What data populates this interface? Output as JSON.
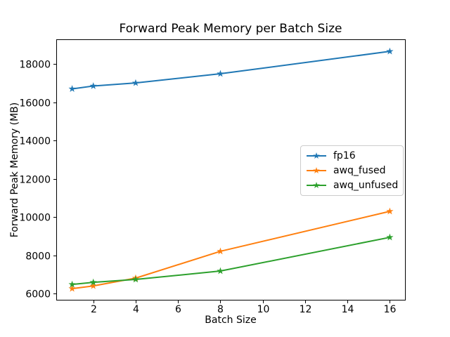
{
  "figure": {
    "background": "#ffffff",
    "text_color": "#000000",
    "spine_color": "#000000",
    "legend_border_color": "#cccccc"
  },
  "chart_data": {
    "type": "line",
    "title": "Forward Peak Memory per Batch Size",
    "xlabel": "Batch Size",
    "ylabel": "Forward Peak Memory (MB)",
    "x": [
      1,
      2,
      4,
      8,
      16
    ],
    "series": [
      {
        "name": "fp16",
        "color": "#1f77b4",
        "marker": "star",
        "values": [
          16700,
          16850,
          17010,
          17490,
          18660
        ]
      },
      {
        "name": "awq_fused",
        "color": "#ff7f0e",
        "marker": "star",
        "values": [
          6260,
          6400,
          6810,
          8210,
          10300
        ]
      },
      {
        "name": "awq_unfused",
        "color": "#2ca02c",
        "marker": "star",
        "values": [
          6480,
          6590,
          6740,
          7180,
          8940
        ]
      }
    ],
    "x_ticks": [
      2,
      4,
      6,
      8,
      10,
      12,
      14,
      16
    ],
    "y_ticks": [
      6000,
      8000,
      10000,
      12000,
      14000,
      16000,
      18000
    ],
    "xlim": [
      0.25,
      16.75
    ],
    "ylim": [
      5640,
      19290
    ],
    "grid": false,
    "legend_position": "center-right"
  }
}
